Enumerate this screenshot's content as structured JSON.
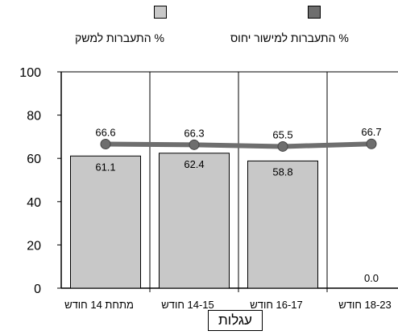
{
  "chart_data": {
    "type": "bar",
    "categories": [
      "מתחת 14 חודש",
      "14-15 חודש",
      "16-17 חודש",
      "18-23 חודש"
    ],
    "series": [
      {
        "name": "% התעברות למשק",
        "type": "bar",
        "values": [
          61.1,
          62.4,
          58.8,
          0.0
        ],
        "color": "#c8c8c8"
      },
      {
        "name": "% התעברות למישור יחוס",
        "type": "line",
        "values": [
          66.6,
          66.3,
          65.5,
          66.7
        ],
        "color": "#6e6e6e"
      }
    ],
    "xlabel": "עגלות",
    "ylabel": "",
    "ylim": [
      0,
      100
    ],
    "yticks": [
      "0",
      "20",
      "40",
      "60",
      "80",
      "100"
    ],
    "grid": "vertical",
    "legend": "top"
  }
}
